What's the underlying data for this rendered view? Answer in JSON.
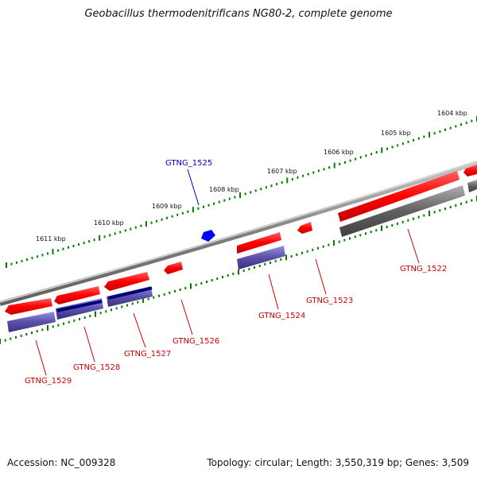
{
  "title": "Geobacillus thermodenitrificans NG80-2, complete genome",
  "accession_text": "Accession: NC_009328",
  "summary_text": "Topology: circular; Length: 3,550,319 bp; Genes: 3,509",
  "colors": {
    "forward_gene": "#ff0000",
    "rna_gene": "#0000ff",
    "blast_hit": "#5a50a8",
    "blast_hit_dark": "#000080",
    "blast_hit_gray": "#606060",
    "axis": "#808080",
    "ticks": "#008000"
  },
  "scale": {
    "unit": "kbp",
    "labels": [
      "1611 kbp",
      "1610 kbp",
      "1609 kbp",
      "1608 kbp",
      "1607 kbp",
      "1606 kbp",
      "1605 kbp",
      "1604 kbp"
    ]
  },
  "genes": [
    {
      "id": "GTNG_1529",
      "label": "GTNG_1529",
      "type": "protein"
    },
    {
      "id": "GTNG_1528",
      "label": "GTNG_1528",
      "type": "protein"
    },
    {
      "id": "GTNG_1527",
      "label": "GTNG_1527",
      "type": "protein"
    },
    {
      "id": "GTNG_1526",
      "label": "GTNG_1526",
      "type": "protein"
    },
    {
      "id": "GTNG_1525",
      "label": "GTNG_1525",
      "type": "rna"
    },
    {
      "id": "GTNG_1524",
      "label": "GTNG_1524",
      "type": "protein"
    },
    {
      "id": "GTNG_1523",
      "label": "GTNG_1523",
      "type": "protein"
    },
    {
      "id": "GTNG_1522",
      "label": "GTNG_1522",
      "type": "protein"
    }
  ]
}
